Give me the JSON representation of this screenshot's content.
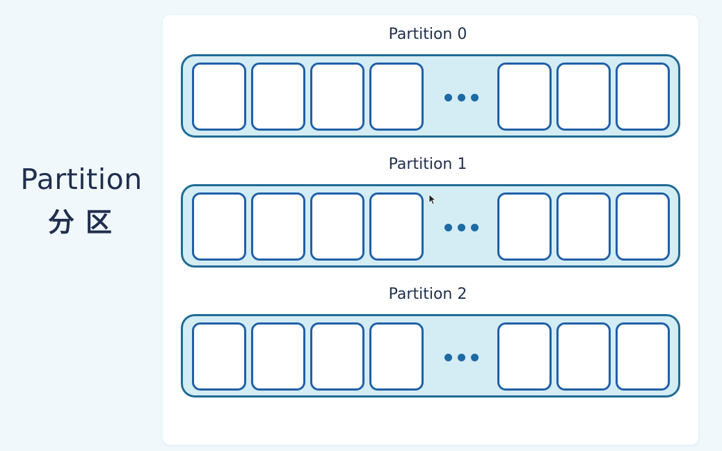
{
  "side_title": {
    "en": "Partition",
    "zh": "分区"
  },
  "partitions": [
    {
      "label": "Partition 0"
    },
    {
      "label": "Partition 1"
    },
    {
      "label": "Partition 2"
    }
  ],
  "colors": {
    "background": "#f1f8fc",
    "card": "#ffffff",
    "track_fill": "#d4ecf3",
    "track_border": "#1f6b96",
    "cell_border": "#1f5fa8",
    "dots": "#1d6aa4",
    "text": "#1f2f4d"
  }
}
